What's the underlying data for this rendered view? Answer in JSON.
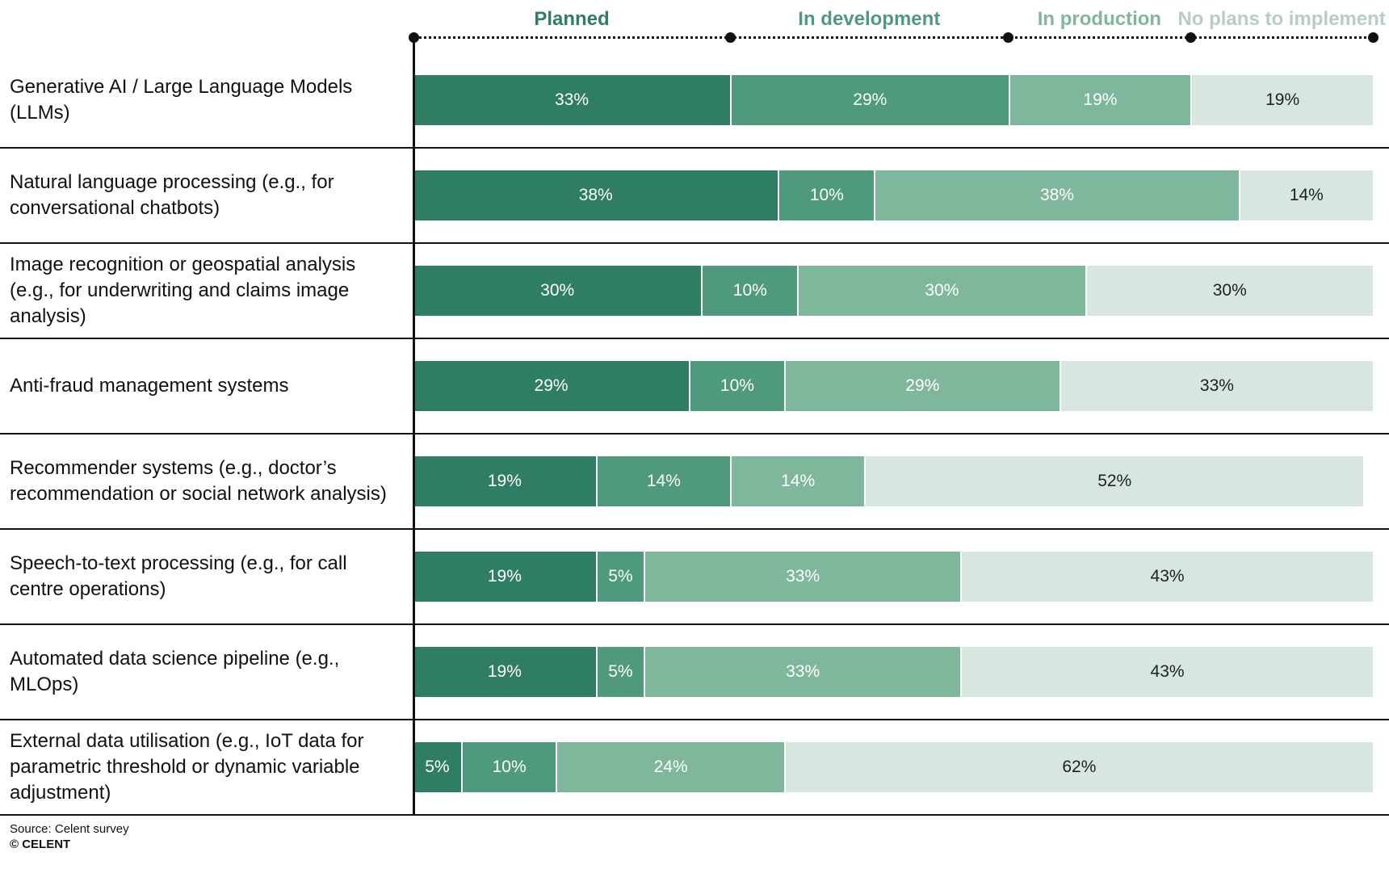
{
  "chart_data": {
    "type": "bar",
    "stacked": true,
    "orientation": "horizontal",
    "unit": "%",
    "xlim": [
      0,
      100
    ],
    "legend_position": "top",
    "series_names": [
      "Planned",
      "In development",
      "In production",
      "No plans to implement"
    ],
    "series_colors": [
      "#2F7E63",
      "#4F997C",
      "#7FB79D",
      "#D7E7DF"
    ],
    "legend_text_colors": [
      "#2F7E63",
      "#4F997C",
      "#7FB79D",
      "#B5CEC2"
    ],
    "value_label_colors": [
      "#FFFFFF",
      "#FFFFFF",
      "#FFFFFF",
      "#1F1F1F"
    ],
    "rows": [
      {
        "label": "Generative AI / Large Language Models (LLMs)",
        "values": [
          33,
          29,
          19,
          19
        ]
      },
      {
        "label": "Natural language processing (e.g., for conversational chatbots)",
        "values": [
          38,
          10,
          38,
          14
        ]
      },
      {
        "label": "Image recognition or geospatial analysis (e.g., for underwriting and claims image analysis)",
        "values": [
          30,
          10,
          30,
          30
        ]
      },
      {
        "label": "Anti-fraud management systems",
        "values": [
          29,
          10,
          29,
          33
        ]
      },
      {
        "label": "Recommender systems (e.g., doctor’s recommendation or social network analysis)",
        "values": [
          19,
          14,
          14,
          52
        ]
      },
      {
        "label": "Speech-to-text processing (e.g., for call centre operations)",
        "values": [
          19,
          5,
          33,
          43
        ]
      },
      {
        "label": "Automated data science pipeline (e.g., MLOps)",
        "values": [
          19,
          5,
          33,
          43
        ]
      },
      {
        "label": "External data utilisation (e.g., IoT data for parametric threshold or dynamic variable adjustment)",
        "values": [
          5,
          10,
          24,
          62
        ]
      }
    ]
  },
  "footer": {
    "source": "Source: Celent survey",
    "copyright": "© CELENT"
  }
}
